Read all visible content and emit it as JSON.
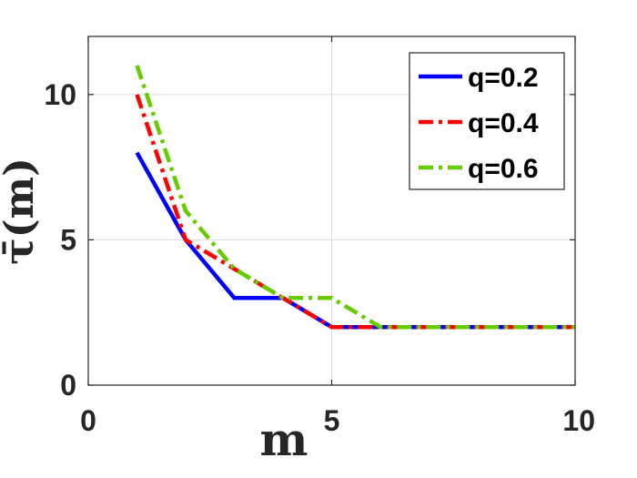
{
  "chart_data": {
    "type": "line",
    "xlabel": "m",
    "ylabel": "τ̄(m)",
    "xlim": [
      0,
      10
    ],
    "ylim": [
      0,
      12
    ],
    "xticks": [
      0,
      5,
      10
    ],
    "yticks": [
      0,
      5,
      10
    ],
    "grid": true,
    "legend_position": "top-right",
    "x": [
      1,
      2,
      3,
      4,
      5,
      6,
      7,
      8,
      9,
      10
    ],
    "series": [
      {
        "name": "q=0.2",
        "color": "#0000ff",
        "dash": "solid",
        "values": [
          8,
          5,
          3,
          3,
          2,
          2,
          2,
          2,
          2,
          2
        ]
      },
      {
        "name": "q=0.4",
        "color": "#ff0000",
        "dash": "dashdot",
        "values": [
          10,
          5,
          4,
          3,
          2,
          2,
          2,
          2,
          2,
          2
        ]
      },
      {
        "name": "q=0.6",
        "color": "#66cc00",
        "dash": "dashdot",
        "values": [
          11,
          6,
          4,
          3,
          3,
          2,
          2,
          2,
          2,
          2
        ]
      }
    ]
  }
}
